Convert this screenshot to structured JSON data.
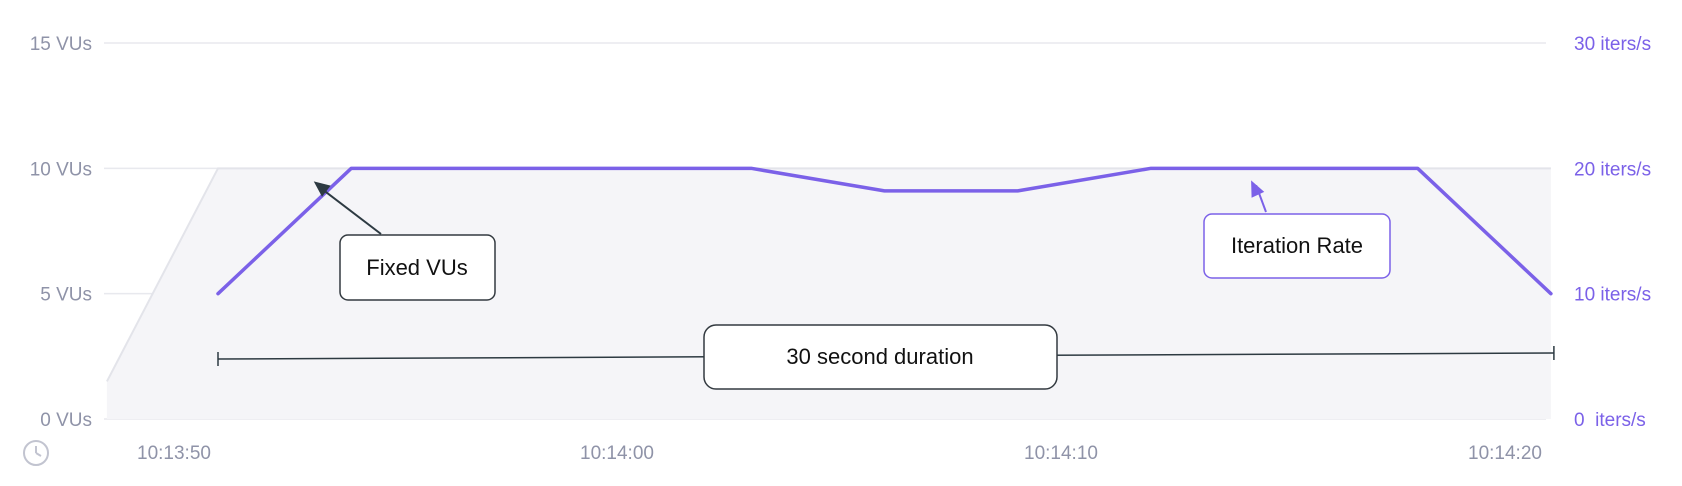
{
  "chart_data": {
    "type": "area",
    "x_ticks": [
      "10:13:50",
      "10:14:00",
      "10:14:10",
      "10:14:20"
    ],
    "y_left": {
      "ylim": [
        0,
        15
      ],
      "ticks": [
        0,
        5,
        10,
        15
      ],
      "tick_labels": [
        "0 VUs",
        "5 VUs",
        "10 VUs",
        "15 VUs"
      ]
    },
    "y_right": {
      "ylim": [
        0,
        30
      ],
      "ticks": [
        0,
        10,
        20,
        30
      ],
      "tick_labels": [
        "0  iters/s",
        "10 iters/s",
        "20 iters/s",
        "30 iters/s"
      ]
    },
    "series": [
      {
        "axis": "left",
        "style": "area",
        "color": "#e3e4ea",
        "fill": "#f5f5f8",
        "x": [
          -2.5,
          0,
          30
        ],
        "y": [
          1.5,
          10,
          10
        ]
      },
      {
        "axis": "right",
        "style": "line",
        "color": "#7b61e8",
        "x": [
          0,
          3,
          12,
          15,
          18,
          21,
          27,
          30
        ],
        "y": [
          10,
          20,
          20,
          18.2,
          18.2,
          20,
          20,
          10
        ]
      }
    ],
    "annotations": {
      "fixed_vus": {
        "text": "Fixed VUs",
        "border": "#333a40",
        "arrow": "#2d3a42",
        "point_x": 2.2,
        "point_y_left": 10
      },
      "iteration_rate": {
        "text": "Iteration Rate",
        "border": "#7b61e8",
        "arrow": "#7b61e8",
        "point_x": 23.5,
        "point_y_right": 20
      },
      "duration": {
        "text": "30 second duration",
        "border": "#333a40",
        "start_x": 0,
        "end_x": 30
      }
    },
    "grid": true,
    "colors": {
      "left_axis": "#8f93a8",
      "right_axis": "#7b61e8"
    }
  },
  "icons": {
    "time": "clock-icon"
  }
}
